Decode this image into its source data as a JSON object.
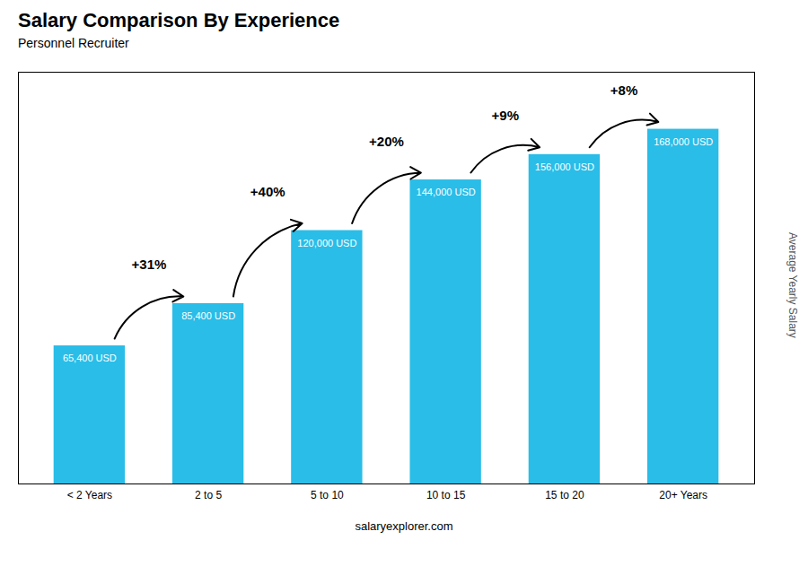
{
  "chart_data": {
    "type": "bar",
    "title": "Salary Comparison By Experience",
    "subtitle": "Personnel Recruiter",
    "categories": [
      "< 2 Years",
      "2 to 5",
      "5 to 10",
      "10 to 15",
      "15 to 20",
      "20+ Years"
    ],
    "values": [
      65400,
      85400,
      120000,
      144000,
      156000,
      168000
    ],
    "value_labels": [
      "65,400 USD",
      "85,400 USD",
      "120,000 USD",
      "144,000 USD",
      "156,000 USD",
      "168,000 USD"
    ],
    "data_labels": true,
    "annotations": [
      "+31%",
      "+40%",
      "+20%",
      "+9%",
      "+8%"
    ],
    "ylabel": "Average Yearly Salary",
    "caption": "salaryexplorer.com",
    "color": "#29bde8",
    "ylim": [
      0,
      195000
    ],
    "tick_labels": "x",
    "grid": false
  }
}
